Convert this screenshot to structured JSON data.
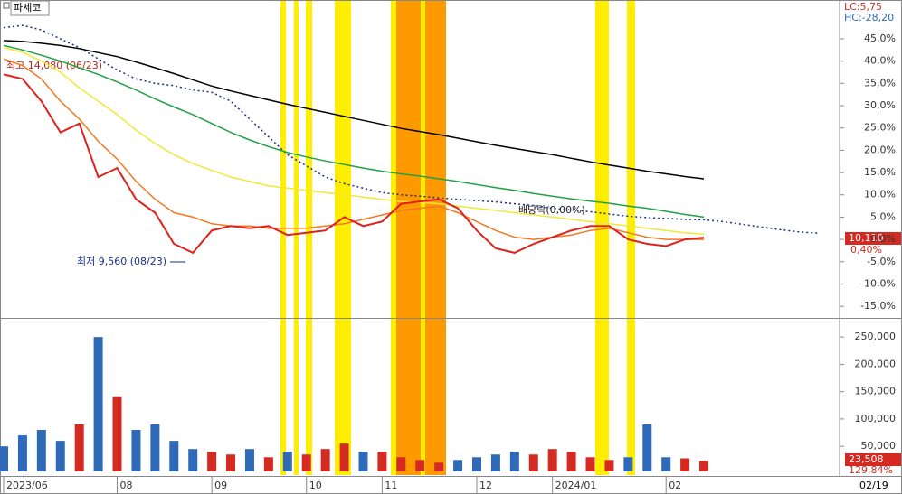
{
  "header": {
    "title": "파세코",
    "lc": "LC:5,75",
    "hc": "HC:-28,20",
    "end_date": "02/19"
  },
  "chart_data": [
    {
      "type": "line",
      "categories": [
        "2023/06",
        null,
        null,
        null,
        null,
        null,
        "08",
        null,
        null,
        null,
        null,
        "09",
        null,
        null,
        null,
        null,
        "10",
        null,
        null,
        null,
        "11",
        null,
        null,
        null,
        null,
        "12",
        null,
        null,
        null,
        "2024/01",
        null,
        null,
        null,
        null,
        null,
        "02",
        null,
        null,
        null,
        null,
        null,
        null,
        null,
        null
      ],
      "series": [
        {
          "color": "#1a2e8c",
          "dash": true,
          "values": [
            47.5,
            48,
            47,
            45,
            43,
            40.5,
            38,
            36,
            35,
            34.5,
            33.5,
            33,
            31,
            27,
            23,
            19,
            16.5,
            14,
            12.5,
            11.5,
            10.5,
            10,
            9.7,
            9.3,
            9,
            8.7,
            8.4,
            8,
            7.6,
            7,
            6.6,
            6.2,
            5.7,
            5.2,
            4.9,
            4.7,
            4.5,
            4.4,
            4,
            3.4,
            2.8,
            2.2,
            1.7,
            1.4
          ]
        },
        {
          "color": "#000000",
          "values": [
            44.6,
            44.4,
            44,
            43.5,
            42.8,
            41.9,
            41,
            39.8,
            38.5,
            37.2,
            35.8,
            34.4,
            33.3,
            32.3,
            31.3,
            30.3,
            29.4,
            28.5,
            27.6,
            26.7,
            25.8,
            24.9,
            24.2,
            23.5,
            22.7,
            21.9,
            21.1,
            20.4,
            19.7,
            19,
            18.2,
            17.4,
            16.7,
            16,
            15.3,
            14.7,
            14.1,
            13.6,
            null,
            null,
            null,
            null,
            null,
            null
          ]
        },
        {
          "color": "#22a044",
          "values": [
            43.5,
            42.5,
            41.3,
            40,
            38.5,
            37,
            35.3,
            33.5,
            31.5,
            29.7,
            28,
            26,
            24,
            22.3,
            20.8,
            19.5,
            18.5,
            17.6,
            16.8,
            16,
            15.3,
            14.7,
            14.2,
            13.6,
            13,
            12.3,
            11.6,
            11,
            10.3,
            9.7,
            9.1,
            8.6,
            8.1,
            7.5,
            7,
            6.3,
            5.6,
            5,
            null,
            null,
            null,
            null,
            null,
            null
          ]
        },
        {
          "color": "#f2e835",
          "values": [
            43,
            42,
            40,
            37.5,
            34,
            31,
            28,
            24.5,
            21.5,
            19,
            17,
            15.5,
            14,
            13,
            12,
            11.5,
            11,
            10.5,
            10,
            9.5,
            9,
            8.5,
            8.3,
            8,
            7.5,
            7,
            6.5,
            6,
            5.5,
            5,
            4.5,
            4,
            3.5,
            3,
            2.5,
            2,
            1.5,
            1.2,
            null,
            null,
            null,
            null,
            null,
            null
          ]
        },
        {
          "color": "#f07a22",
          "values": [
            40.5,
            39,
            36,
            31,
            27,
            22,
            18,
            13,
            9,
            6,
            5,
            3.5,
            3,
            3,
            2.5,
            2.5,
            2.5,
            3,
            3.5,
            4.5,
            5.5,
            6.5,
            7,
            7.5,
            6,
            4,
            2,
            0.5,
            0,
            0.5,
            1,
            2,
            2.5,
            1.5,
            0.5,
            0,
            0,
            0,
            null,
            null,
            null,
            null,
            null,
            null
          ]
        },
        {
          "color": "#e0201b",
          "width": 2,
          "values": [
            37,
            36,
            31,
            24,
            26,
            14,
            16,
            9,
            6,
            -1,
            -3,
            2,
            3,
            2.5,
            3,
            1,
            1.5,
            2,
            5,
            3,
            4,
            8,
            8.5,
            9,
            7,
            2,
            -2,
            -3,
            -1,
            0.5,
            2,
            3,
            3,
            0,
            -1,
            -1.5,
            0,
            0.4,
            null,
            null,
            null,
            null,
            null,
            null
          ]
        }
      ],
      "ylim": [
        -17.6,
        53.7
      ],
      "yticks": [
        {
          "value": 45,
          "label": "45,0%"
        },
        {
          "value": 40,
          "label": "40,0%"
        },
        {
          "value": 35,
          "label": "35,0%"
        },
        {
          "value": 30,
          "label": "30,0%"
        },
        {
          "value": 25,
          "label": "25,0%"
        },
        {
          "value": 20,
          "label": "20,0%"
        },
        {
          "value": 15,
          "label": "15,0%"
        },
        {
          "value": 10,
          "label": "10,0%"
        },
        {
          "value": 5,
          "label": "5,0%"
        },
        {
          "value": 0,
          "label": "0,0%"
        },
        {
          "value": -5,
          "label": "-5,0%"
        },
        {
          "value": -10,
          "label": "-10,0%"
        },
        {
          "value": -15,
          "label": "-15,0%"
        }
      ],
      "high_label": "최고 14,080 (06/23)",
      "low_label": "최저 9,560 (08/23)",
      "dividend_label": "배당락(0,00%)",
      "last_value_label": "10,110",
      "last_change_label": "0,40%"
    },
    {
      "type": "bar",
      "values": [
        50000,
        70000,
        80000,
        60000,
        90000,
        250000,
        140000,
        80000,
        90000,
        60000,
        45000,
        40000,
        35000,
        45000,
        30000,
        40000,
        35000,
        45000,
        55000,
        40000,
        40000,
        30000,
        25000,
        20000,
        25000,
        30000,
        35000,
        40000,
        35000,
        45000,
        40000,
        30000,
        25000,
        30000,
        90000,
        30000,
        28000,
        23508
      ],
      "up_color": "#d42a22",
      "down_color": "#2f6ab8",
      "ylim": [
        4000,
        280000
      ],
      "yticks": [
        {
          "value": 250000,
          "label": "250,000"
        },
        {
          "value": 200000,
          "label": "200,000"
        },
        {
          "value": 150000,
          "label": "150,000"
        },
        {
          "value": 100000,
          "label": "100,000"
        },
        {
          "value": 50000,
          "label": "50,000"
        }
      ],
      "last_value_label": "23,508",
      "last_ratio_label": "129,84%"
    }
  ]
}
